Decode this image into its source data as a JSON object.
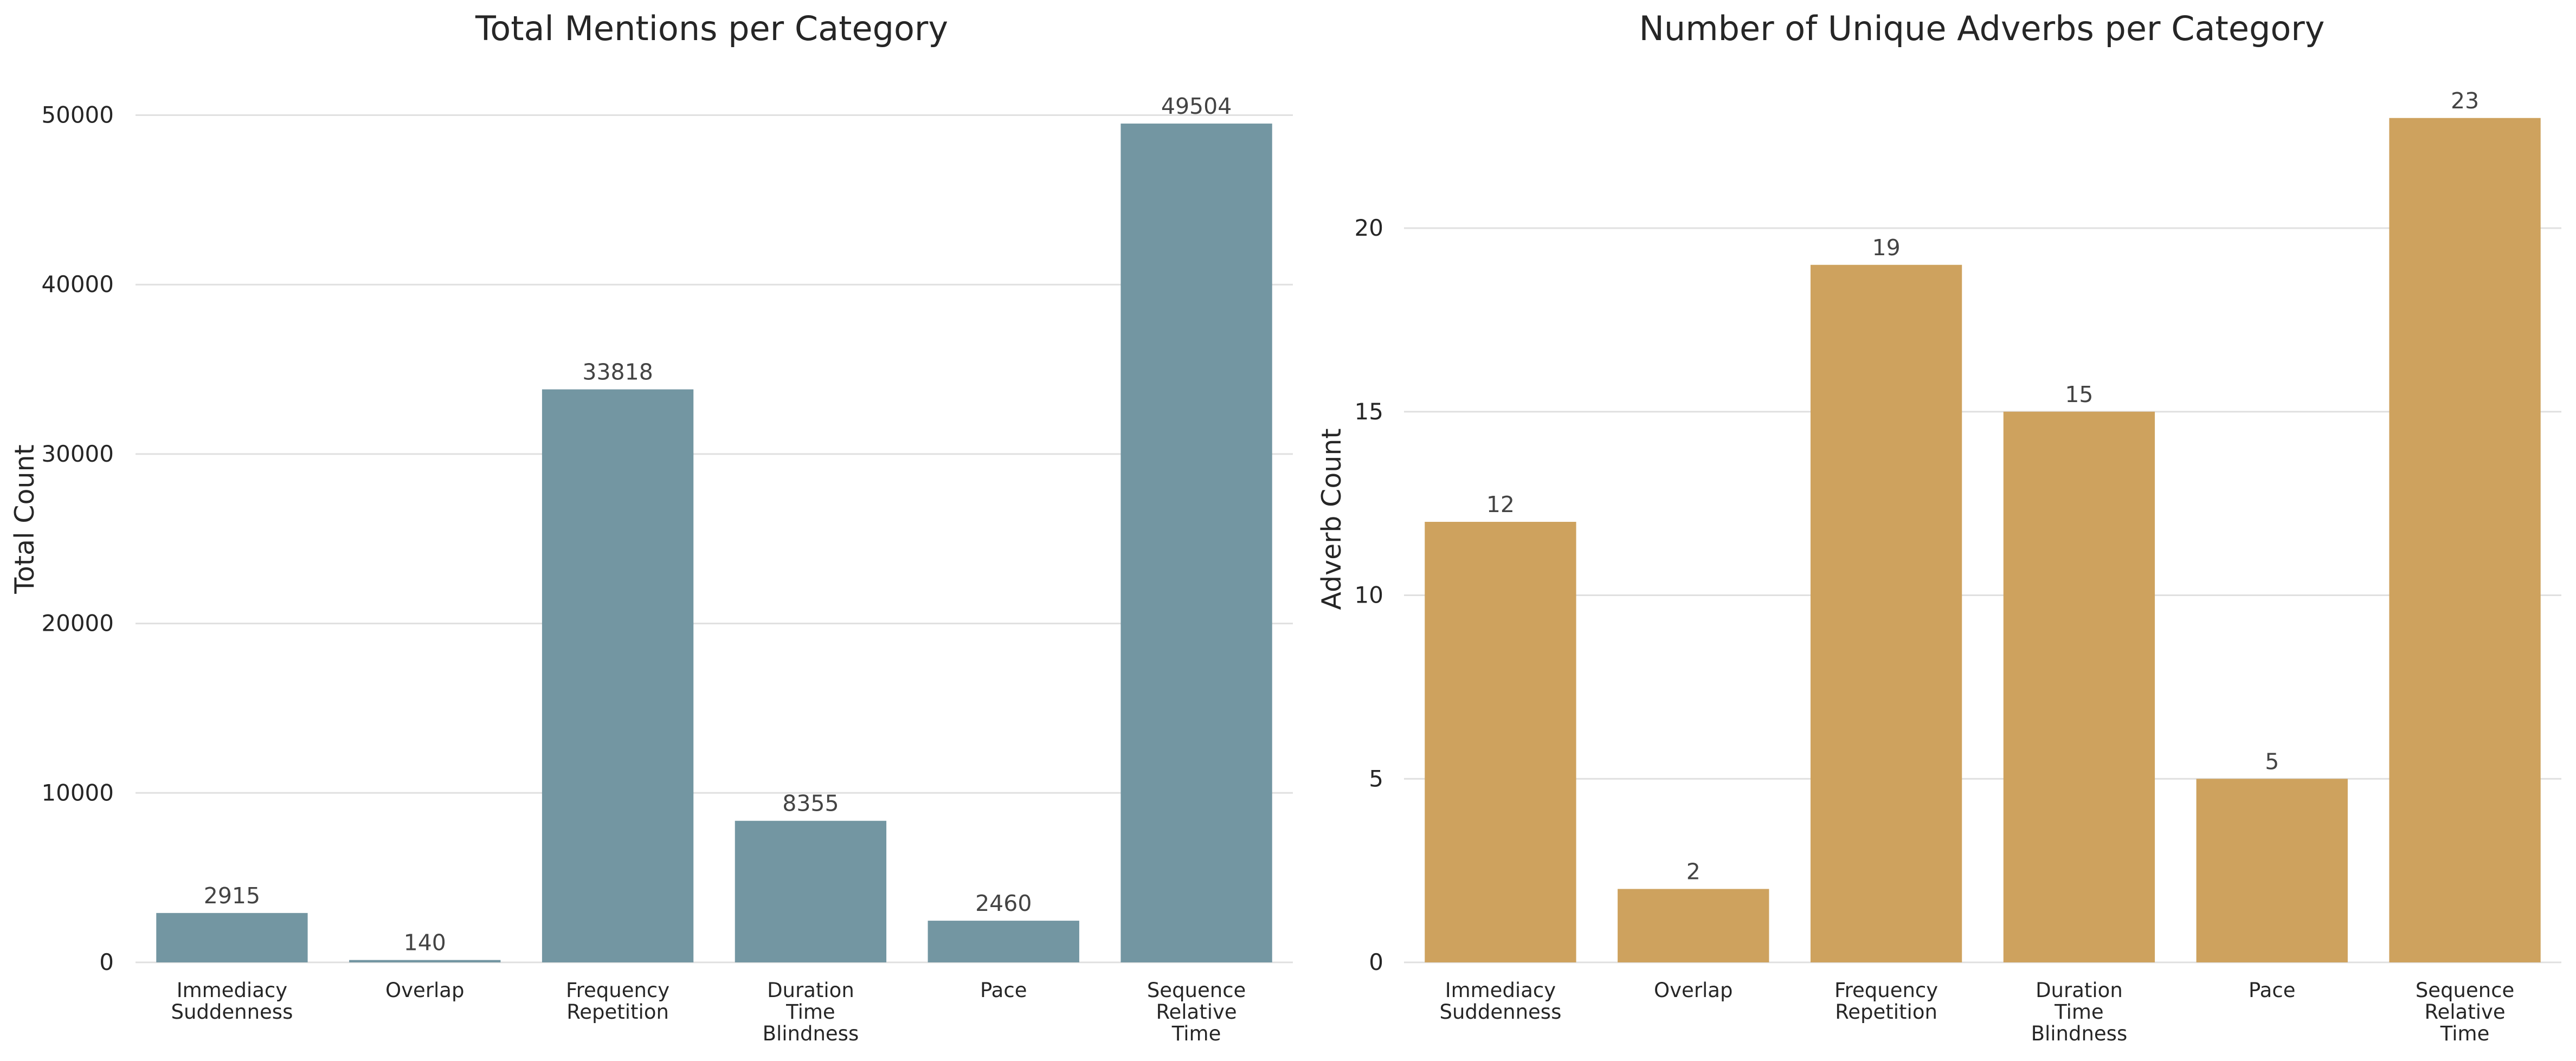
{
  "chart_data": [
    {
      "type": "bar",
      "title": "Total Mentions per Category",
      "xlabel": "",
      "ylabel": "Total Count",
      "categories": [
        [
          "Immediacy",
          "Suddenness"
        ],
        [
          "Overlap"
        ],
        [
          "Frequency",
          "Repetition"
        ],
        [
          "Duration",
          "Time",
          "Blindness"
        ],
        [
          "Pace"
        ],
        [
          "Sequence",
          "Relative",
          "Time"
        ]
      ],
      "values": [
        2915,
        140,
        33818,
        8355,
        2460,
        49504
      ],
      "value_labels": [
        "2915",
        "140",
        "33818",
        "8355",
        "2460",
        "49504"
      ],
      "yticks": [
        "0",
        "10000",
        "20000",
        "30000",
        "40000",
        "50000"
      ],
      "ylim": [
        0,
        52000
      ],
      "grid": true,
      "color": "#7396a2"
    },
    {
      "type": "bar",
      "title": "Number of Unique Adverbs per Category",
      "xlabel": "",
      "ylabel": "Adverb Count",
      "categories": [
        [
          "Immediacy",
          "Suddenness"
        ],
        [
          "Overlap"
        ],
        [
          "Frequency",
          "Repetition"
        ],
        [
          "Duration",
          "Time",
          "Blindness"
        ],
        [
          "Pace"
        ],
        [
          "Sequence",
          "Relative",
          "Time"
        ]
      ],
      "values": [
        12,
        2,
        19,
        15,
        5,
        23
      ],
      "value_labels": [
        "12",
        "2",
        "19",
        "15",
        "5",
        "23"
      ],
      "yticks": [
        "0",
        "5",
        "10",
        "15",
        "20"
      ],
      "ylim": [
        0,
        24
      ],
      "grid": true,
      "color": "#cea25e"
    }
  ]
}
